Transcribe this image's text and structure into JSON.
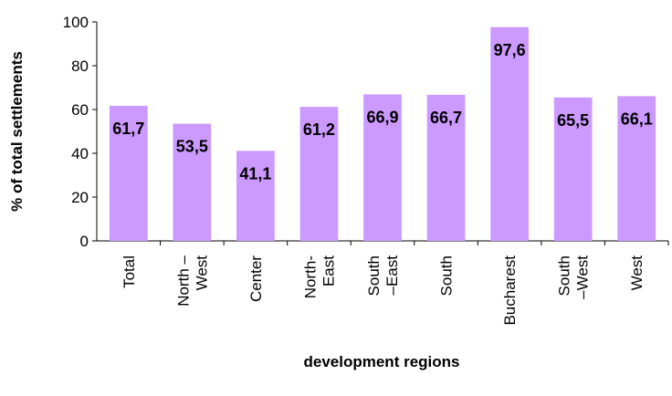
{
  "chart_data": {
    "type": "bar",
    "y_label": "% of total settlements",
    "x_label": "development regions",
    "categories": [
      [
        "Total"
      ],
      [
        "North –",
        "West"
      ],
      [
        "Center"
      ],
      [
        "North-",
        "East"
      ],
      [
        "South",
        "–East"
      ],
      [
        "South"
      ],
      [
        "Bucharest"
      ],
      [
        "South",
        "–West"
      ],
      [
        "West"
      ]
    ],
    "values": [
      61.7,
      53.5,
      41.1,
      61.2,
      66.9,
      66.7,
      97.6,
      65.5,
      66.1
    ],
    "value_labels": [
      "61,7",
      "53,5",
      "41,1",
      "61,2",
      "66,9",
      "66,7",
      "97,6",
      "65,5",
      "66,1"
    ],
    "color": "#cc99ff",
    "ylim": [
      0,
      100
    ],
    "yticks": [
      0,
      20,
      40,
      60,
      80,
      100
    ]
  }
}
